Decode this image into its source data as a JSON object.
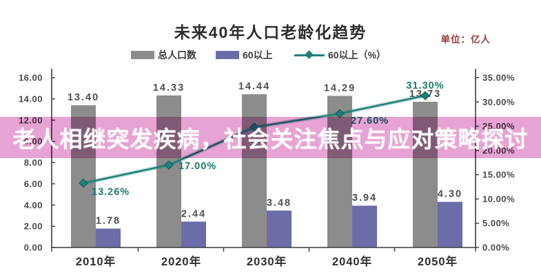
{
  "header": {
    "title": "未来40年人口老龄化趋势",
    "unit_label": "单位：亿人",
    "unit_color": "#9b3a3a"
  },
  "overlay": {
    "text": "老人相继突发疾病，社会关注焦点与应对策略探讨",
    "band_color": "#e7a3d3",
    "text_color": "#ffffff"
  },
  "legend": [
    {
      "label": "总人口数",
      "type": "bar",
      "color": "#8c8c8c"
    },
    {
      "label": "60以上",
      "type": "bar",
      "color": "#6b6ca8"
    },
    {
      "label": "60以上（%）",
      "type": "line",
      "color": "#1f8078"
    }
  ],
  "chart_data": {
    "type": "bar",
    "subtype": "bar+line combo, dual axis",
    "title": "未来40年人口老龄化趋势",
    "unit": "亿人",
    "categories": [
      "2010年",
      "2020年",
      "2030年",
      "2040年",
      "2050年"
    ],
    "series": [
      {
        "name": "总人口数",
        "type": "bar",
        "axis": "left",
        "color": "#8c8c8c",
        "values": [
          13.4,
          14.33,
          14.44,
          14.29,
          13.73
        ],
        "labels": [
          "13.40",
          "14.33",
          "14.44",
          "14.29",
          "13.73"
        ]
      },
      {
        "name": "60以上",
        "type": "bar",
        "axis": "left",
        "color": "#6b6ca8",
        "values": [
          1.78,
          2.44,
          3.48,
          3.94,
          4.3
        ],
        "labels": [
          "1.78",
          "2.44",
          "3.48",
          "3.94",
          "4.30"
        ]
      },
      {
        "name": "60以上（%）",
        "type": "line",
        "axis": "right",
        "color": "#1f8078",
        "values": [
          13.26,
          17.0,
          24.8,
          27.6,
          31.3
        ],
        "labels": [
          "13.26%",
          "17.00%",
          "",
          "27.60%",
          "31.30%"
        ]
      }
    ],
    "left_axis": {
      "min": 0,
      "max": 16,
      "step": 2,
      "tick_labels": [
        "0.00",
        "2.00",
        "4.00",
        "6.00",
        "8.00",
        "10.00",
        "12.00",
        "14.00",
        "16.00"
      ]
    },
    "right_axis": {
      "min": 0,
      "max": 35,
      "step": 5,
      "tick_labels": [
        "0.00%",
        "5.00%",
        "10.00%",
        "15.00%",
        "20.00%",
        "25.00%",
        "30.00%",
        "35.00%"
      ]
    },
    "grid": false,
    "legend_position": "top",
    "note_colors": {
      "axis_text": "#4a4a4a",
      "bar_label_text": "#4f4f4f",
      "line_label_text": "#1c7a72",
      "x_label_text": "#2f2f2f",
      "frame": "#3a3a3a"
    }
  }
}
